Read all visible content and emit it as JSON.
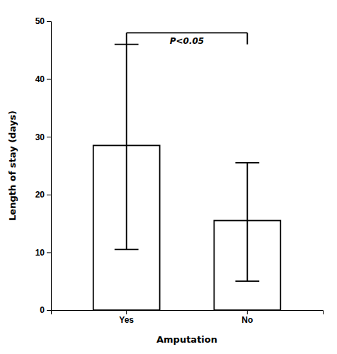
{
  "chart_data": {
    "type": "bar",
    "categories": [
      "Yes",
      "No"
    ],
    "values": [
      28.5,
      15.5
    ],
    "error_lower": [
      10.5,
      5.0
    ],
    "error_upper": [
      46.0,
      25.5
    ],
    "colors": [
      "white",
      "white"
    ],
    "xlabel": "Amputation",
    "ylabel": "Length of stay (days)",
    "ylim": [
      0,
      50
    ],
    "yticks": [
      0,
      10,
      20,
      30,
      40,
      50
    ],
    "grid": false,
    "annotations": [
      {
        "text": "P<0.05",
        "y": 48.0,
        "drop": 2.0,
        "x1": "Yes",
        "x2": "No"
      }
    ]
  }
}
